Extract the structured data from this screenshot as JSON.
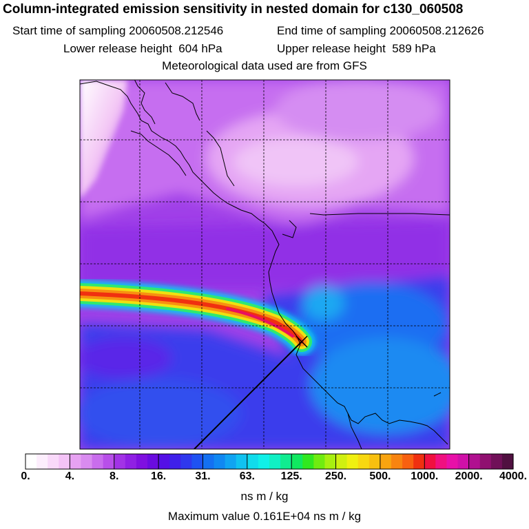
{
  "chart_data": {
    "type": "heatmap",
    "title": "Column-integrated emission sensitivity in nested domain for c130_060508",
    "start_label": "Start time of sampling",
    "start_value": "20060508.212546",
    "end_label": "End time of sampling",
    "end_value": "20060508.212626",
    "lower_label": "Lower release height",
    "lower_value": "604 hPa",
    "upper_label": "Upper release height",
    "upper_value": "589 hPa",
    "met_note": "Meteorological data used are from GFS",
    "units": "ns m / kg",
    "max_value_text": "Maximum value  0.161E+04 ns m / kg",
    "legend_ticks": [
      "0.",
      "4.",
      "8.",
      "16.",
      "31.",
      "63.",
      "125.",
      "250.",
      "500.",
      "1000.",
      "2000.",
      "4000."
    ],
    "legend_colors": [
      "#ffffff",
      "#fdeefd",
      "#f9d9fa",
      "#f4c3f7",
      "#e7a2f2",
      "#d98bf0",
      "#c96ded",
      "#b84fe9",
      "#a233e6",
      "#9020e4",
      "#7f10e0",
      "#6a0ce0",
      "#5410e6",
      "#3f20ea",
      "#2f38ee",
      "#1f52f2",
      "#1470f2",
      "#1088f2",
      "#10a4f2",
      "#10c2f0",
      "#10dcec",
      "#10f0e8",
      "#10f0c4",
      "#10ec90",
      "#10e860",
      "#30e820",
      "#70ec10",
      "#a8f010",
      "#d0f010",
      "#f0f010",
      "#f8d810",
      "#f8c010",
      "#f8a410",
      "#f88410",
      "#f86010",
      "#f03010",
      "#f01040",
      "#f01080",
      "#e810a8",
      "#d010a8",
      "#b01090",
      "#901070",
      "#701058",
      "#501040"
    ],
    "max_value": 1610,
    "colorbar_min": 0,
    "colorbar_max": 4000
  }
}
